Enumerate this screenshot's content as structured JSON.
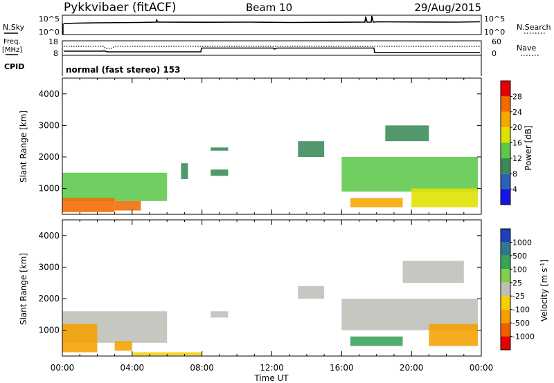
{
  "header": {
    "radar": "Pykkvibaer (fitACF)",
    "beam": "Beam 10",
    "date": "29/Aug/2015"
  },
  "sky_panel": {
    "left_label": "N.Sky",
    "right_label": "N.Search",
    "left_ticks": [
      "10^5",
      "10^0"
    ],
    "right_ticks": [
      "10^5",
      "10^0"
    ]
  },
  "freq_panel": {
    "left_label_line1": "Freq.",
    "left_label_line2": "[MHz]",
    "right_label": "Nave",
    "left_ticks": [
      "18",
      "8"
    ],
    "right_ticks": [
      "60",
      "0"
    ]
  },
  "cpid": {
    "label": "CPID",
    "text": "normal (fast stereo) 153"
  },
  "axes": {
    "ylabel": "Slant Range [km]",
    "xlabel": "Time UT",
    "y_ticks": [
      1000,
      2000,
      3000,
      4000
    ],
    "x_ticks": [
      "00:00",
      "04:00",
      "08:00",
      "12:00",
      "16:00",
      "20:00",
      "00:00"
    ],
    "x_range_hours": [
      0,
      24
    ],
    "y_range_km": [
      180,
      4500
    ]
  },
  "power_scale": {
    "label": "Power [dB]",
    "ticks": [
      "4",
      "8",
      "12",
      "16",
      "20",
      "24",
      "28"
    ],
    "colors": [
      "#1414e6",
      "#2b5fb8",
      "#3a8a58",
      "#5cc84a",
      "#e0e000",
      "#f5a800",
      "#f26a00",
      "#e60000"
    ]
  },
  "velocity_scale": {
    "label": "Velocity [m s",
    "label_sup": "-1",
    "label_end": "]",
    "ticks": [
      "1000",
      "500",
      "100",
      "25",
      "-25",
      "-100",
      "-500",
      "-1000"
    ],
    "colors": [
      "#1f3fbf",
      "#2e7a8a",
      "#3aa35a",
      "#7fd04a",
      "#bfbfb8",
      "#f5d000",
      "#f5a000",
      "#f06000",
      "#e60000"
    ]
  },
  "chart_data": [
    {
      "type": "heatmap",
      "title": "Power [dB]",
      "x_range": [
        0,
        24
      ],
      "y_range": [
        180,
        4500
      ],
      "regions": [
        {
          "t": [
            0.0,
            6.0
          ],
          "r": [
            600,
            1500
          ],
          "value": 12
        },
        {
          "t": [
            0.0,
            3.0
          ],
          "r": [
            250,
            700
          ],
          "value": 26
        },
        {
          "t": [
            3.0,
            4.5
          ],
          "r": [
            300,
            600
          ],
          "value": 24
        },
        {
          "t": [
            6.8,
            7.2
          ],
          "r": [
            1300,
            1800
          ],
          "value": 8
        },
        {
          "t": [
            8.5,
            9.5
          ],
          "r": [
            1400,
            1600
          ],
          "value": 8
        },
        {
          "t": [
            8.5,
            9.5
          ],
          "r": [
            2200,
            2300
          ],
          "value": 8
        },
        {
          "t": [
            13.5,
            15.0
          ],
          "r": [
            2000,
            2500
          ],
          "value": 8
        },
        {
          "t": [
            16.0,
            23.8
          ],
          "r": [
            900,
            2000
          ],
          "value": 12
        },
        {
          "t": [
            16.5,
            19.5
          ],
          "r": [
            400,
            700
          ],
          "value": 20
        },
        {
          "t": [
            20.0,
            23.8
          ],
          "r": [
            400,
            1000
          ],
          "value": 16
        },
        {
          "t": [
            18.5,
            21.0
          ],
          "r": [
            2500,
            3000
          ],
          "value": 8
        }
      ]
    },
    {
      "type": "heatmap",
      "title": "Velocity",
      "x_range": [
        0,
        24
      ],
      "y_range": [
        180,
        4500
      ],
      "regions": [
        {
          "t": [
            0.0,
            6.0
          ],
          "r": [
            600,
            1600
          ],
          "value": 0
        },
        {
          "t": [
            0.0,
            2.0
          ],
          "r": [
            300,
            1200
          ],
          "value": -500
        },
        {
          "t": [
            3.0,
            4.0
          ],
          "r": [
            350,
            650
          ],
          "value": -500
        },
        {
          "t": [
            4.0,
            8.0
          ],
          "r": [
            200,
            300
          ],
          "value": -100
        },
        {
          "t": [
            8.5,
            9.5
          ],
          "r": [
            1400,
            1600
          ],
          "value": 0
        },
        {
          "t": [
            13.5,
            15.0
          ],
          "r": [
            2000,
            2400
          ],
          "value": 0
        },
        {
          "t": [
            16.0,
            23.8
          ],
          "r": [
            1000,
            2000
          ],
          "value": 0
        },
        {
          "t": [
            16.5,
            19.5
          ],
          "r": [
            500,
            800
          ],
          "value": 100
        },
        {
          "t": [
            21.0,
            23.8
          ],
          "r": [
            500,
            1200
          ],
          "value": -500
        },
        {
          "t": [
            19.5,
            23.0
          ],
          "r": [
            2500,
            3200
          ],
          "value": 0
        }
      ]
    }
  ]
}
